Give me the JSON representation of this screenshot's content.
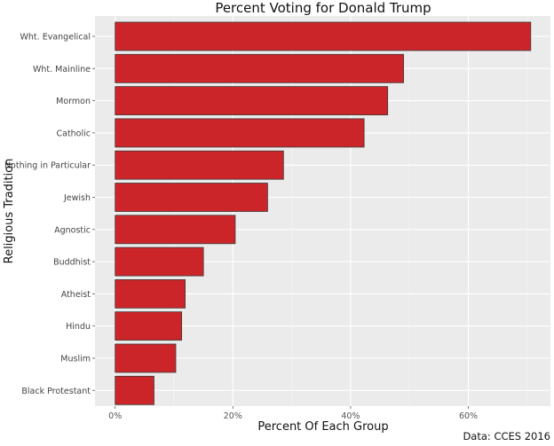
{
  "chart_data": {
    "type": "bar",
    "orientation": "horizontal",
    "title": "Percent Voting for Donald Trump",
    "xlabel": "Percent Of Each Group",
    "ylabel": "Religious Tradition",
    "caption": "Data: CCES 2016",
    "categories": [
      "Wht. Evangelical",
      "Wht. Mainline",
      "Mormon",
      "Catholic",
      "Nothing in Particular",
      "Jewish",
      "Agnostic",
      "Buddhist",
      "Atheist",
      "Hindu",
      "Muslim",
      "Black Protestant"
    ],
    "values": [
      70.6,
      49.0,
      46.3,
      42.3,
      28.6,
      25.9,
      20.4,
      15.0,
      11.9,
      11.3,
      10.3,
      6.6
    ],
    "xlim": [
      -3.5,
      74
    ],
    "xticks": [
      0,
      20,
      40,
      60
    ],
    "xtick_labels": [
      "0%",
      "20%",
      "40%",
      "60%"
    ],
    "grid": true,
    "colors": {
      "bar": "#cc2529",
      "bar_outline": "#3a3a3a",
      "panel": "#ebebeb"
    }
  }
}
